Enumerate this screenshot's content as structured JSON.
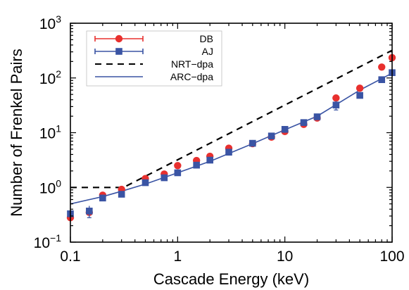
{
  "chart_data": {
    "type": "scatter",
    "title": "",
    "xlabel": "Cascade Energy (keV)",
    "ylabel": "Number of Frenkel Pairs",
    "xscale": "log",
    "yscale": "log",
    "xlim": [
      0.1,
      100
    ],
    "ylim": [
      0.1,
      1000
    ],
    "grid": false,
    "legend_position": "top-left",
    "x_ticks": [
      {
        "value": 0.1,
        "label": "0.1"
      },
      {
        "value": 1,
        "label": "1"
      },
      {
        "value": 10,
        "label": "10"
      },
      {
        "value": 100,
        "label": "100"
      }
    ],
    "y_ticks": [
      {
        "value": 0.1,
        "base": "10",
        "exp": "−1"
      },
      {
        "value": 1,
        "base": "10",
        "exp": "0"
      },
      {
        "value": 10,
        "base": "10",
        "exp": "1"
      },
      {
        "value": 100,
        "base": "10",
        "exp": "2"
      },
      {
        "value": 1000,
        "base": "10",
        "exp": "3"
      }
    ],
    "series": [
      {
        "name": "DB",
        "kind": "marker-errorbar",
        "marker": "circle",
        "color": "#e8302e",
        "x": [
          0.1,
          0.15,
          0.2,
          0.3,
          0.5,
          0.75,
          1,
          1.5,
          2,
          3,
          5,
          7.5,
          10,
          15,
          20,
          30,
          50,
          80,
          100
        ],
        "y": [
          0.28,
          0.35,
          0.72,
          0.92,
          1.45,
          1.75,
          2.5,
          3.1,
          3.7,
          5.2,
          6.3,
          8.3,
          10.5,
          14.2,
          18.5,
          43,
          65,
          158,
          235
        ]
      },
      {
        "name": "AJ",
        "kind": "marker-errorbar",
        "marker": "square",
        "color": "#3a54a4",
        "x": [
          0.1,
          0.15,
          0.2,
          0.3,
          0.5,
          0.75,
          1,
          1.5,
          2,
          3,
          5,
          7.5,
          10,
          15,
          20,
          30,
          50,
          80,
          100
        ],
        "y": [
          0.33,
          0.37,
          0.64,
          0.75,
          1.22,
          1.5,
          1.85,
          2.55,
          3.15,
          4.4,
          6.4,
          8.7,
          11.5,
          15.3,
          19.5,
          32,
          48,
          93,
          125
        ]
      },
      {
        "name": "NRT−dpa",
        "kind": "line",
        "dash": true,
        "color": "#000000",
        "x": [
          0.1,
          0.3125,
          100
        ],
        "y": [
          1,
          1,
          320
        ]
      },
      {
        "name": "ARC−dpa",
        "kind": "line",
        "dash": false,
        "color": "#3a54a4",
        "x": [
          0.1,
          0.2,
          0.3,
          0.5,
          1,
          2,
          5,
          10,
          20,
          50,
          100
        ],
        "y": [
          0.5,
          0.68,
          0.85,
          1.15,
          1.85,
          3.0,
          6.3,
          11.3,
          20,
          60,
          122
        ]
      }
    ]
  }
}
